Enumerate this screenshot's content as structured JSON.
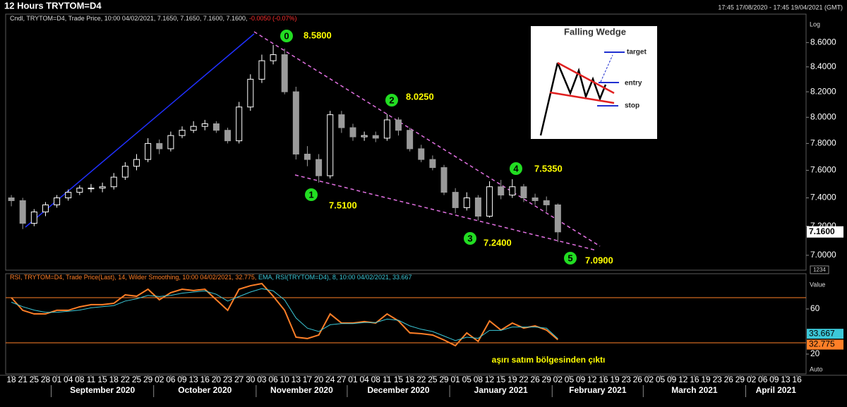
{
  "chart_data": [
    {
      "type": "candlestick",
      "title": "12 Hours TRYTOM=D4",
      "subtitle": "17:45 17/08/2020 - 17:45 19/04/2021 (GMT)",
      "legend": "Cndl, TRYTOM=D4, Trade Price, 10:00 04/02/2021, 7.1650, 7.1650, 7.1600, 7.1600,",
      "change": "-0.0050 (-0.07%)",
      "x": [
        0,
        1,
        2,
        3,
        4,
        5,
        6,
        7,
        8,
        9,
        10,
        11,
        12,
        13,
        14,
        15,
        16,
        17,
        18,
        19,
        20,
        21,
        22,
        23,
        24,
        25,
        26,
        27,
        28,
        29,
        30,
        31,
        32,
        33,
        34,
        35,
        36,
        37,
        38,
        39,
        40,
        41,
        42,
        43,
        44,
        45,
        46,
        47,
        48
      ],
      "open": [
        7.4,
        7.38,
        7.22,
        7.3,
        7.35,
        7.4,
        7.44,
        7.47,
        7.47,
        7.48,
        7.55,
        7.63,
        7.68,
        7.8,
        7.76,
        7.86,
        7.9,
        7.93,
        7.95,
        7.9,
        7.82,
        8.08,
        8.3,
        8.45,
        8.5,
        8.2,
        7.72,
        7.68,
        7.56,
        8.02,
        7.92,
        7.85,
        7.86,
        7.84,
        7.98,
        7.9,
        7.76,
        7.68,
        7.62,
        7.44,
        7.33,
        7.4,
        7.27,
        7.48,
        7.42,
        7.48,
        7.4,
        7.38,
        7.35
      ],
      "high": [
        7.42,
        7.4,
        7.32,
        7.37,
        7.42,
        7.46,
        7.49,
        7.5,
        7.51,
        7.58,
        7.66,
        7.72,
        7.84,
        7.83,
        7.89,
        7.93,
        7.97,
        7.98,
        7.97,
        7.92,
        8.12,
        8.34,
        8.5,
        8.58,
        8.55,
        8.24,
        7.78,
        7.72,
        8.05,
        8.05,
        7.95,
        7.89,
        7.89,
        8.025,
        8.0,
        7.92,
        7.79,
        7.71,
        7.64,
        7.47,
        7.44,
        7.42,
        7.52,
        7.53,
        7.535,
        7.5,
        7.43,
        7.41,
        7.36
      ],
      "low": [
        7.34,
        7.18,
        7.2,
        7.27,
        7.33,
        7.38,
        7.42,
        7.44,
        7.44,
        7.46,
        7.53,
        7.6,
        7.66,
        7.72,
        7.74,
        7.84,
        7.88,
        7.9,
        7.88,
        7.8,
        7.8,
        8.05,
        8.27,
        8.42,
        8.18,
        7.68,
        7.63,
        7.51,
        7.54,
        7.88,
        7.82,
        7.82,
        7.81,
        7.82,
        7.86,
        7.74,
        7.66,
        7.6,
        7.42,
        7.29,
        7.31,
        7.24,
        7.26,
        7.39,
        7.4,
        7.37,
        7.35,
        7.3,
        7.09
      ],
      "close": [
        7.38,
        7.22,
        7.3,
        7.35,
        7.4,
        7.44,
        7.47,
        7.47,
        7.48,
        7.55,
        7.63,
        7.68,
        7.8,
        7.76,
        7.86,
        7.9,
        7.93,
        7.95,
        7.9,
        7.82,
        8.08,
        8.3,
        8.45,
        8.5,
        8.2,
        7.72,
        7.68,
        7.56,
        8.02,
        7.92,
        7.85,
        7.86,
        7.84,
        7.98,
        7.9,
        7.76,
        7.68,
        7.62,
        7.44,
        7.33,
        7.4,
        7.27,
        7.48,
        7.42,
        7.48,
        7.4,
        7.38,
        7.35,
        7.16
      ],
      "up_color": "#ffffff",
      "down_color": "#9a9a9a",
      "log_scale": true,
      "scale_label": "Log",
      "ylim": [
        6.9,
        8.84
      ],
      "yticks": [
        {
          "value": 8.6,
          "label": "8.6000"
        },
        {
          "value": 8.4,
          "label": "8.4000"
        },
        {
          "value": 8.2,
          "label": "8.2000"
        },
        {
          "value": 8.0,
          "label": "8.0000"
        },
        {
          "value": 7.8,
          "label": "7.8000"
        },
        {
          "value": 7.6,
          "label": "7.6000"
        },
        {
          "value": 7.4,
          "label": "7.4000"
        },
        {
          "value": 7.2,
          "label": "7.2000"
        },
        {
          "value": 7.0,
          "label": "7.0000"
        }
      ],
      "last_price": {
        "value": 7.16,
        "label": "7.1600"
      },
      "note_box": "1234",
      "xlim": [
        -0.5,
        69.8
      ],
      "xticks": [
        {
          "value": 0,
          "label": "18"
        },
        {
          "value": 1,
          "label": "21"
        },
        {
          "value": 2,
          "label": "25"
        },
        {
          "value": 3,
          "label": "28"
        },
        {
          "value": 4,
          "label": "01"
        },
        {
          "value": 5,
          "label": "04"
        },
        {
          "value": 6,
          "label": "08"
        },
        {
          "value": 7,
          "label": "11"
        },
        {
          "value": 8,
          "label": "15"
        },
        {
          "value": 9,
          "label": "18"
        },
        {
          "value": 10,
          "label": "22"
        },
        {
          "value": 11,
          "label": "25"
        },
        {
          "value": 12,
          "label": "29"
        },
        {
          "value": 13,
          "label": "02"
        },
        {
          "value": 14,
          "label": "06"
        },
        {
          "value": 15,
          "label": "09"
        },
        {
          "value": 16,
          "label": "13"
        },
        {
          "value": 17,
          "label": "16"
        },
        {
          "value": 18,
          "label": "20"
        },
        {
          "value": 19,
          "label": "23"
        },
        {
          "value": 20,
          "label": "27"
        },
        {
          "value": 21,
          "label": "30"
        },
        {
          "value": 22,
          "label": "03"
        },
        {
          "value": 23,
          "label": "06"
        },
        {
          "value": 24,
          "label": "10"
        },
        {
          "value": 25,
          "label": "13"
        },
        {
          "value": 26,
          "label": "17"
        },
        {
          "value": 27,
          "label": "20"
        },
        {
          "value": 28,
          "label": "24"
        },
        {
          "value": 29,
          "label": "27"
        },
        {
          "value": 30,
          "label": "01"
        },
        {
          "value": 31,
          "label": "04"
        },
        {
          "value": 32,
          "label": "08"
        },
        {
          "value": 33,
          "label": "11"
        },
        {
          "value": 34,
          "label": "15"
        },
        {
          "value": 35,
          "label": "18"
        },
        {
          "value": 36,
          "label": "22"
        },
        {
          "value": 37,
          "label": "25"
        },
        {
          "value": 38,
          "label": "29"
        },
        {
          "value": 39,
          "label": "01"
        },
        {
          "value": 40,
          "label": "05"
        },
        {
          "value": 41,
          "label": "08"
        },
        {
          "value": 42,
          "label": "12"
        },
        {
          "value": 43,
          "label": "15"
        },
        {
          "value": 44,
          "label": "19"
        },
        {
          "value": 45,
          "label": "22"
        },
        {
          "value": 46,
          "label": "26"
        },
        {
          "value": 47,
          "label": "29"
        },
        {
          "value": 48,
          "label": "02"
        },
        {
          "value": 49,
          "label": "05"
        },
        {
          "value": 50,
          "label": "09"
        },
        {
          "value": 51,
          "label": "12"
        },
        {
          "value": 52,
          "label": "16"
        },
        {
          "value": 53,
          "label": "19"
        },
        {
          "value": 54,
          "label": "23"
        },
        {
          "value": 55,
          "label": "26"
        },
        {
          "value": 56,
          "label": "02"
        },
        {
          "value": 57,
          "label": "05"
        },
        {
          "value": 58,
          "label": "09"
        },
        {
          "value": 59,
          "label": "12"
        },
        {
          "value": 60,
          "label": "16"
        },
        {
          "value": 61,
          "label": "19"
        },
        {
          "value": 62,
          "label": "23"
        },
        {
          "value": 63,
          "label": "26"
        },
        {
          "value": 64,
          "label": "29"
        },
        {
          "value": 65,
          "label": "02"
        },
        {
          "value": 66,
          "label": "06"
        },
        {
          "value": 67,
          "label": "09"
        },
        {
          "value": 68,
          "label": "13"
        },
        {
          "value": 69,
          "label": "16"
        }
      ],
      "months": [
        {
          "value": 3.5,
          "label": "September 2020"
        },
        {
          "value": 12.5,
          "label": "October 2020"
        },
        {
          "value": 21.5,
          "label": "November 2020"
        },
        {
          "value": 29.5,
          "label": "December 2020"
        },
        {
          "value": 38.5,
          "label": "January 2021"
        },
        {
          "value": 47.5,
          "label": "February 2021"
        },
        {
          "value": 55.5,
          "label": "March 2021"
        },
        {
          "value": 64.5,
          "label": "April 2021"
        }
      ],
      "annotations": [
        {
          "label": "0",
          "text": "8.5800"
        },
        {
          "label": "1",
          "text": "7.5100"
        },
        {
          "label": "2",
          "text": "8.0250"
        },
        {
          "label": "3",
          "text": "7.2400"
        },
        {
          "label": "4",
          "text": "7.5350"
        },
        {
          "label": "5",
          "text": "7.0900"
        }
      ],
      "inset": {
        "title": "Falling Wedge",
        "target": "target",
        "entry": "entry",
        "stop": "stop"
      }
    },
    {
      "type": "line",
      "series": [
        {
          "name": "RSI, TRYTOM=D4, Trade Price(Last), 14, Wilder Smoothing, 10:00 04/02/2021, 32.775,",
          "color": "#ff7f27",
          "values": [
            70,
            58.8,
            55.6,
            55.6,
            58.8,
            58.8,
            61.9,
            63.8,
            63.8,
            65,
            72.5,
            71.3,
            77.5,
            68.1,
            74.4,
            77.5,
            76.3,
            77.5,
            68.1,
            58.8,
            77.5,
            80.6,
            82.5,
            71.3,
            58.8,
            35,
            33.8,
            36.9,
            55.6,
            47.5,
            47.5,
            48.8,
            47.5,
            55.6,
            49.4,
            38.8,
            38.1,
            36.9,
            32.5,
            27.5,
            38.8,
            31.3,
            49.4,
            41.3,
            47.5,
            43.1,
            45,
            41.3,
            32.775
          ]
        },
        {
          "name": "EMA, RSI(TRYTOM=D4), 8, 10:00 04/02/2021, 33.667",
          "color": "#3cc8d8",
          "values": [
            66,
            62,
            59,
            57,
            57,
            58,
            59,
            61,
            62,
            63,
            67,
            69,
            72,
            71,
            72,
            74,
            75,
            76,
            73,
            67,
            71,
            75,
            78,
            76,
            68,
            52,
            43,
            40,
            46,
            47,
            47,
            48,
            48,
            51,
            50,
            45,
            42,
            40,
            36,
            32,
            35,
            34,
            41,
            41,
            44,
            44,
            44,
            43,
            33.667
          ]
        }
      ],
      "ylim": [
        2.5,
        91.25
      ],
      "yticks": [
        60,
        20
      ],
      "levels": [
        70,
        30
      ],
      "level_color": "#ff7f27",
      "scale_label": "Value",
      "auto_label": "Auto",
      "note": "aşırı satım bölgesinden çıktı"
    }
  ]
}
